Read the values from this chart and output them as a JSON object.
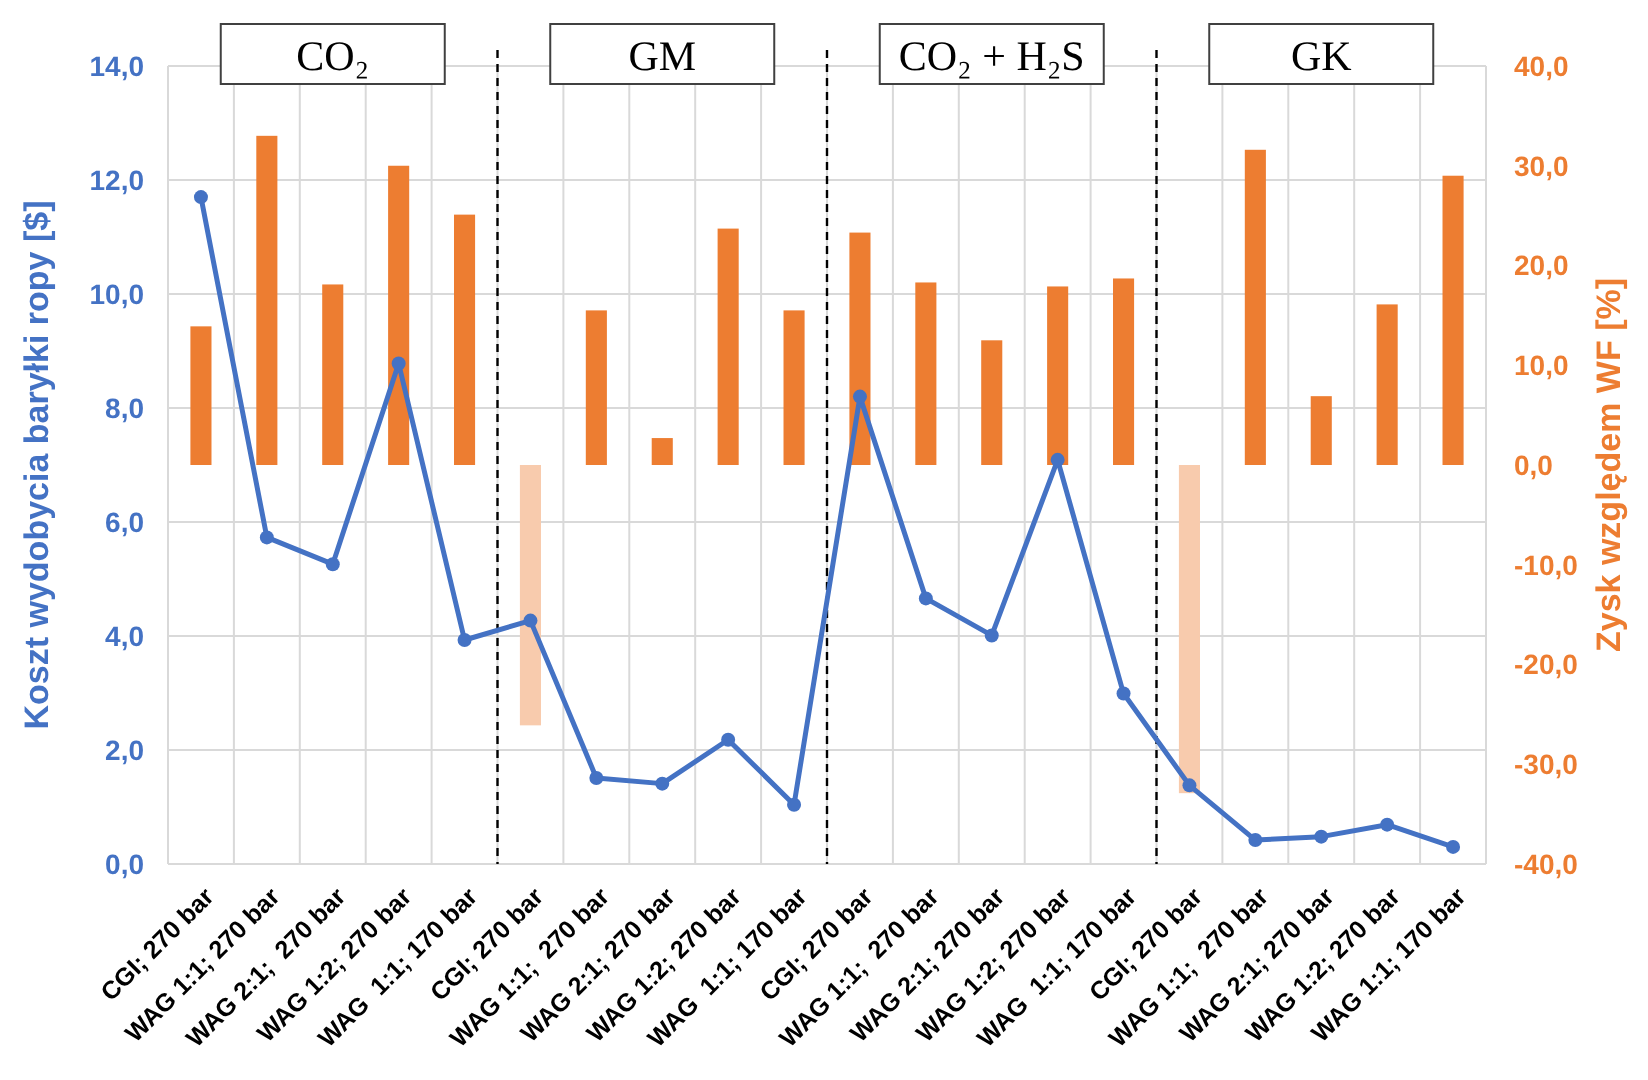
{
  "chart_data": {
    "type": "bar",
    "ylabel": "Koszt wydobycia baryłki ropy [$]",
    "y2label": "Zysk względem WF [%]",
    "categories": [
      "CGI; 270 bar",
      "WAG 1:1; 270 bar",
      "WAG 2:1;  270 bar",
      "WAG 1:2; 270 bar",
      "WAG  1:1; 170 bar",
      "CGI; 270 bar",
      "WAG 1:1;  270 bar",
      "WAG 2:1; 270 bar",
      "WAG 1:2; 270 bar",
      "WAG  1:1; 170 bar",
      "CGI; 270 bar",
      "WAG 1:1;  270 bar",
      "WAG 2:1; 270 bar",
      "WAG 1:2; 270 bar",
      "WAG  1:1; 170 bar",
      "CGI; 270 bar",
      "WAG 1:1;  270 bar",
      "WAG 2:1; 270 bar",
      "WAG 1:2; 270 bar",
      "WAG 1:1; 170 bar"
    ],
    "series": [
      {
        "axis": "y2",
        "colors": [
          "#ed7d31",
          "#ed7d31",
          "#ed7d31",
          "#ed7d31",
          "#ed7d31",
          "#f8cbad",
          "#ed7d31",
          "#ed7d31",
          "#ed7d31",
          "#ed7d31",
          "#ed7d31",
          "#ed7d31",
          "#ed7d31",
          "#ed7d31",
          "#ed7d31",
          "#f8cbad",
          "#ed7d31",
          "#ed7d31",
          "#ed7d31",
          "#ed7d31"
        ],
        "values": [
          13.9,
          33.0,
          18.1,
          30.0,
          25.1,
          -26.1,
          15.5,
          2.7,
          23.7,
          15.5,
          23.3,
          18.3,
          12.5,
          17.9,
          18.7,
          -32.9,
          31.6,
          6.9,
          16.1,
          29.0
        ]
      },
      {
        "type": "line",
        "axis": "y",
        "color": "#4472c4",
        "values": [
          11.7,
          5.73,
          5.26,
          8.78,
          3.93,
          4.27,
          1.51,
          1.41,
          2.18,
          1.04,
          8.2,
          4.66,
          4.01,
          7.09,
          2.99,
          1.38,
          0.42,
          0.48,
          0.69,
          0.3
        ]
      }
    ],
    "ylim": [
      0,
      14
    ],
    "yticks": [
      {
        "value": 0,
        "label": "0,0"
      },
      {
        "value": 2,
        "label": "2,0"
      },
      {
        "value": 4,
        "label": "4,0"
      },
      {
        "value": 6,
        "label": "6,0"
      },
      {
        "value": 8,
        "label": "8,0"
      },
      {
        "value": 10,
        "label": "10,0"
      },
      {
        "value": 12,
        "label": "12,0"
      },
      {
        "value": 14,
        "label": "14,0"
      }
    ],
    "y2lim": [
      -40,
      40
    ],
    "y2ticks": [
      {
        "value": -40,
        "label": "-40,0"
      },
      {
        "value": -30,
        "label": "-30,0"
      },
      {
        "value": -20,
        "label": "-20,0"
      },
      {
        "value": -10,
        "label": "-10,0"
      },
      {
        "value": 0,
        "label": "0,0"
      },
      {
        "value": 10,
        "label": "10,0"
      },
      {
        "value": 20,
        "label": "20,0"
      },
      {
        "value": 30,
        "label": "30,0"
      },
      {
        "value": 40,
        "label": "40,0"
      }
    ],
    "annotations": [
      "CO₂",
      "GM",
      "CO₂ + H₂S",
      "GK"
    ],
    "grid": true,
    "marker": "circle",
    "line_style": "solid"
  }
}
